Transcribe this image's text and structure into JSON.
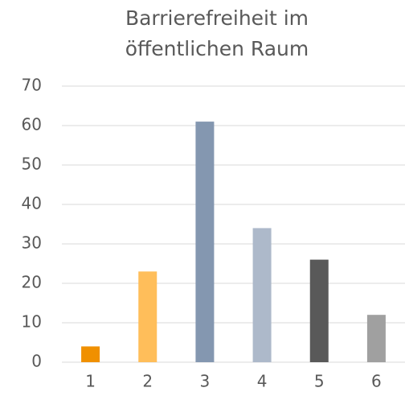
{
  "chart_data": {
    "type": "bar",
    "title": "Barrierefreiheit im öffentlichen Raum",
    "categories": [
      "1",
      "2",
      "3",
      "4",
      "5",
      "6"
    ],
    "values": [
      4,
      23,
      61,
      34,
      26,
      12
    ],
    "colors": [
      "#f09000",
      "#ffbe5a",
      "#8497b0",
      "#adb9ca",
      "#595959",
      "#a0a0a0"
    ],
    "ylim": [
      0,
      70
    ],
    "yticks": [
      0,
      10,
      20,
      30,
      40,
      50,
      60,
      70
    ],
    "grid": true
  }
}
